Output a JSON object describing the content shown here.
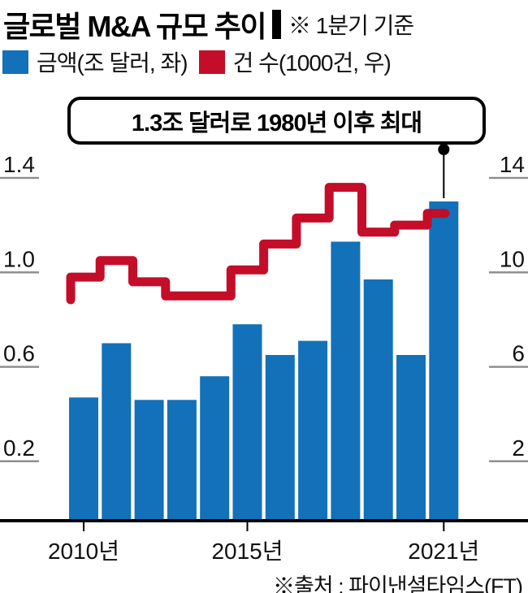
{
  "header": {
    "title": "글로벌 M&A 규모 추이",
    "note": "※ 1분기 기준"
  },
  "source": {
    "text": "※출처 : 파이낸셜타임스(FT)"
  },
  "chart_data": {
    "type": "bar",
    "title": "글로벌 M&A 규모 추이",
    "note": "※ 1분기 기준",
    "categories": [
      2010,
      2011,
      2012,
      2013,
      2014,
      2015,
      2016,
      2017,
      2018,
      2019,
      2020,
      2021
    ],
    "series": [
      {
        "name": "금액(조 달러, 좌)",
        "type": "bar",
        "axis": "left",
        "color": "#1271b8",
        "values": [
          0.47,
          0.7,
          0.46,
          0.46,
          0.56,
          0.78,
          0.65,
          0.71,
          1.13,
          0.97,
          0.65,
          1.3
        ]
      },
      {
        "name": "건 수(1000건, 우)",
        "type": "step-line",
        "axis": "right",
        "color": "#c40d28",
        "values": [
          9.8,
          10.5,
          9.6,
          9.0,
          9.0,
          10.1,
          11.2,
          12.3,
          13.6,
          11.7,
          12.0,
          12.5
        ]
      }
    ],
    "left_axis": {
      "unit": "조 달러",
      "tick_labels": [
        "1.4",
        "1.0",
        "0.6",
        "0.2"
      ],
      "tick_values": [
        1.4,
        1.0,
        0.6,
        0.2
      ],
      "range": [
        0,
        1.5
      ]
    },
    "right_axis": {
      "unit": "1000건",
      "tick_labels": [
        "14",
        "10",
        "6",
        "2"
      ],
      "tick_values": [
        14,
        10,
        6,
        2
      ],
      "range": [
        0,
        15
      ]
    },
    "x_axis": {
      "tick_labels": [
        "2010년",
        "2015년",
        "2021년"
      ],
      "tick_values": [
        2010,
        2015,
        2021
      ]
    },
    "annotation": {
      "text": "1.3조 달러로 1980년 이후 최대",
      "target_year": 2021,
      "target_value": 1.3
    },
    "grid": false,
    "legend_position": "top-left",
    "axis_color": "#000000",
    "tick_color": "#8c8c8c",
    "text_color": "#111111"
  }
}
